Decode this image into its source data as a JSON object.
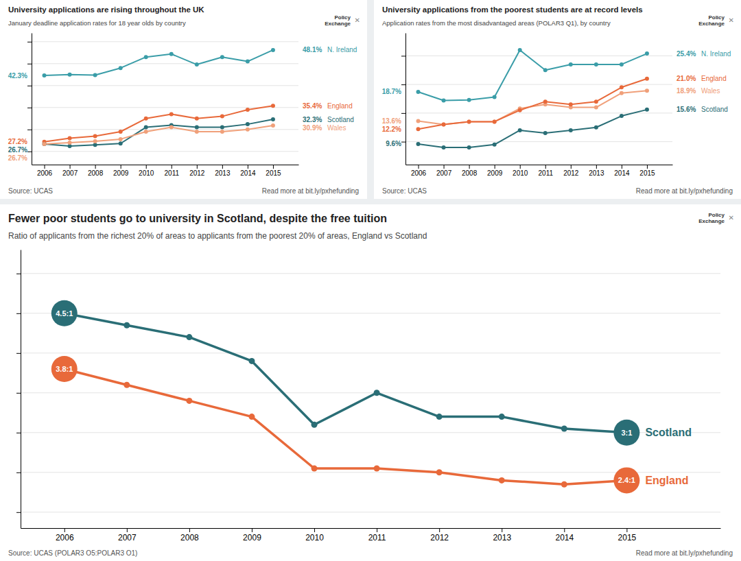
{
  "chart_data": [
    {
      "type": "line",
      "title": "University applications are rising throughout the UK",
      "subtitle": "January deadline application rates for 18 year olds by country",
      "annotations": [
        "Source: UCAS",
        "Read more at bit.ly/pxhefunding",
        "Policy",
        "Exchange",
        "✕"
      ],
      "x": [
        2006,
        2007,
        2008,
        2009,
        2010,
        2011,
        2012,
        2013,
        2014,
        2015
      ],
      "xlim": [
        2005.5,
        2016
      ],
      "xticks": [
        2006,
        2007,
        2008,
        2009,
        2010,
        2011,
        2012,
        2013,
        2014,
        2015
      ],
      "ylim": [
        22,
        52
      ],
      "yticks": [
        25,
        30,
        35,
        40,
        45,
        50
      ],
      "grid": true,
      "tick_labels": "x",
      "data_labels": true,
      "marker": "circle",
      "series": [
        {
          "name": "N. Ireland",
          "color": "#3a9da8",
          "values": [
            42.3,
            42.5,
            42.4,
            44.0,
            46.5,
            47.2,
            44.8,
            46.5,
            45.5,
            48.1
          ],
          "value_labels": [
            "42.3%",
            null,
            null,
            null,
            null,
            null,
            null,
            null,
            null,
            "48.1%"
          ]
        },
        {
          "name": "England",
          "color": "#e8693a",
          "values": [
            27.2,
            28.0,
            28.5,
            29.5,
            32.5,
            33.5,
            32.5,
            33.0,
            34.5,
            35.4
          ],
          "value_labels": [
            "27.2%",
            null,
            null,
            null,
            null,
            null,
            null,
            null,
            null,
            "35.4%"
          ]
        },
        {
          "name": "Scotland",
          "color": "#2a6e76",
          "values": [
            26.7,
            26.2,
            26.5,
            26.8,
            30.5,
            31.0,
            30.5,
            30.5,
            31.2,
            32.3
          ],
          "value_labels": [
            "26.7%",
            null,
            null,
            null,
            null,
            null,
            null,
            null,
            null,
            "32.3%"
          ]
        },
        {
          "name": "Wales",
          "color": "#f0a07a",
          "values": [
            26.7,
            27.0,
            27.3,
            27.8,
            29.5,
            30.5,
            29.5,
            29.5,
            30.0,
            30.9
          ],
          "value_labels": [
            "26.7%",
            null,
            null,
            null,
            null,
            null,
            null,
            null,
            null,
            "30.9%"
          ]
        }
      ]
    },
    {
      "type": "line",
      "title": "University applications from the poorest students are at record levels",
      "subtitle": "Application rates from the most disadvantaged areas (POLAR3 Q1), by country",
      "annotations": [
        "Source: UCAS",
        "Read more at bit.ly/pxhefunding",
        "Policy",
        "Exchange",
        "✕"
      ],
      "x": [
        2006,
        2007,
        2008,
        2009,
        2010,
        2011,
        2012,
        2013,
        2014,
        2015
      ],
      "xlim": [
        2005.5,
        2016
      ],
      "xticks": [
        2006,
        2007,
        2008,
        2009,
        2010,
        2011,
        2012,
        2013,
        2014,
        2015
      ],
      "ylim": [
        6,
        29
      ],
      "yticks": [
        10,
        15,
        20,
        25
      ],
      "grid": true,
      "tick_labels": "x",
      "data_labels": true,
      "marker": "circle",
      "series": [
        {
          "name": "N. Ireland",
          "color": "#3a9da8",
          "values": [
            18.7,
            17.2,
            17.3,
            17.8,
            26.0,
            22.5,
            23.5,
            23.5,
            23.5,
            25.4
          ],
          "value_labels": [
            "18.7%",
            null,
            null,
            null,
            null,
            null,
            null,
            null,
            null,
            "25.4%"
          ]
        },
        {
          "name": "Wales",
          "color": "#f0a07a",
          "values": [
            13.6,
            13.0,
            13.5,
            13.5,
            15.8,
            16.5,
            16.0,
            16.0,
            18.5,
            18.9
          ],
          "value_labels": [
            "13.6%",
            null,
            null,
            null,
            null,
            null,
            null,
            null,
            null,
            "18.9%"
          ]
        },
        {
          "name": "England",
          "color": "#e8693a",
          "values": [
            12.2,
            13.0,
            13.5,
            13.5,
            15.5,
            17.0,
            16.5,
            17.0,
            19.5,
            21.0
          ],
          "value_labels": [
            "12.2%",
            null,
            null,
            null,
            null,
            null,
            null,
            null,
            null,
            "21.0%"
          ]
        },
        {
          "name": "Scotland",
          "color": "#2a6e76",
          "values": [
            9.6,
            9.0,
            9.0,
            9.5,
            12.0,
            11.5,
            12.0,
            12.5,
            14.5,
            15.6
          ],
          "value_labels": [
            "9.6%",
            null,
            null,
            null,
            null,
            null,
            null,
            null,
            null,
            "15.6%"
          ]
        }
      ]
    },
    {
      "type": "line",
      "title": "Fewer poor students go to university in Scotland, despite the free tuition",
      "subtitle": "Ratio of applicants from the richest 20% of areas to applicants from the poorest 20% of areas, England vs Scotland",
      "annotations": [
        "Source: UCAS (POLAR3 O5:POLAR3 O1)",
        "Read more at bit.ly/pxhefunding",
        "Policy",
        "Exchange",
        "✕"
      ],
      "x": [
        2006,
        2007,
        2008,
        2009,
        2010,
        2011,
        2012,
        2013,
        2014,
        2015
      ],
      "xlim": [
        2005.3,
        2016.5
      ],
      "xticks": [
        2006,
        2007,
        2008,
        2009,
        2010,
        2011,
        2012,
        2013,
        2014,
        2015
      ],
      "ylim": [
        1.8,
        5.3
      ],
      "yticks": [
        2.0,
        2.5,
        3.0,
        3.5,
        4.0,
        4.5,
        5.0
      ],
      "grid": true,
      "tick_labels": "x",
      "data_labels": true,
      "marker": "circle",
      "series": [
        {
          "name": "Scotland",
          "color": "#2a6e76",
          "values": [
            4.5,
            4.35,
            4.2,
            3.9,
            3.1,
            3.5,
            3.2,
            3.2,
            3.05,
            3.0
          ],
          "value_labels": [
            "4.5:1",
            null,
            null,
            null,
            null,
            null,
            null,
            null,
            null,
            "3:1"
          ]
        },
        {
          "name": "England",
          "color": "#e8693a",
          "values": [
            3.8,
            3.6,
            3.4,
            3.2,
            2.55,
            2.55,
            2.5,
            2.4,
            2.35,
            2.4
          ],
          "value_labels": [
            "3.8:1",
            null,
            null,
            null,
            null,
            null,
            null,
            null,
            null,
            "2.4:1"
          ]
        }
      ]
    }
  ]
}
